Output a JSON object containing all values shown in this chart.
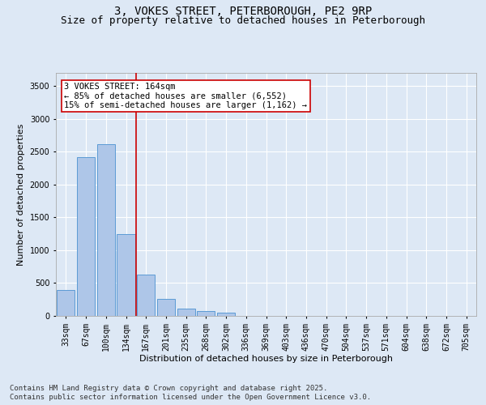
{
  "title_line1": "3, VOKES STREET, PETERBOROUGH, PE2 9RP",
  "title_line2": "Size of property relative to detached houses in Peterborough",
  "xlabel": "Distribution of detached houses by size in Peterborough",
  "ylabel": "Number of detached properties",
  "categories": [
    "33sqm",
    "67sqm",
    "100sqm",
    "134sqm",
    "167sqm",
    "201sqm",
    "235sqm",
    "268sqm",
    "302sqm",
    "336sqm",
    "369sqm",
    "403sqm",
    "436sqm",
    "470sqm",
    "504sqm",
    "537sqm",
    "571sqm",
    "604sqm",
    "638sqm",
    "672sqm",
    "705sqm"
  ],
  "values": [
    390,
    2420,
    2610,
    1240,
    630,
    260,
    110,
    75,
    50,
    0,
    0,
    0,
    0,
    0,
    0,
    0,
    0,
    0,
    0,
    0,
    0
  ],
  "bar_color": "#aec6e8",
  "bar_edge_color": "#5b9bd5",
  "vline_color": "#cc0000",
  "annotation_text_line1": "3 VOKES STREET: 164sqm",
  "annotation_text_line2": "← 85% of detached houses are smaller (6,552)",
  "annotation_text_line3": "15% of semi-detached houses are larger (1,162) →",
  "annotation_box_color": "#ffffff",
  "annotation_box_edge_color": "#cc0000",
  "ylim": [
    0,
    3700
  ],
  "yticks": [
    0,
    500,
    1000,
    1500,
    2000,
    2500,
    3000,
    3500
  ],
  "bg_color": "#dde8f5",
  "plot_bg_color": "#dde8f5",
  "grid_color": "#ffffff",
  "footer_line1": "Contains HM Land Registry data © Crown copyright and database right 2025.",
  "footer_line2": "Contains public sector information licensed under the Open Government Licence v3.0.",
  "title_fontsize": 10,
  "subtitle_fontsize": 9,
  "axis_label_fontsize": 8,
  "tick_fontsize": 7,
  "footer_fontsize": 6.5,
  "annotation_fontsize": 7.5
}
